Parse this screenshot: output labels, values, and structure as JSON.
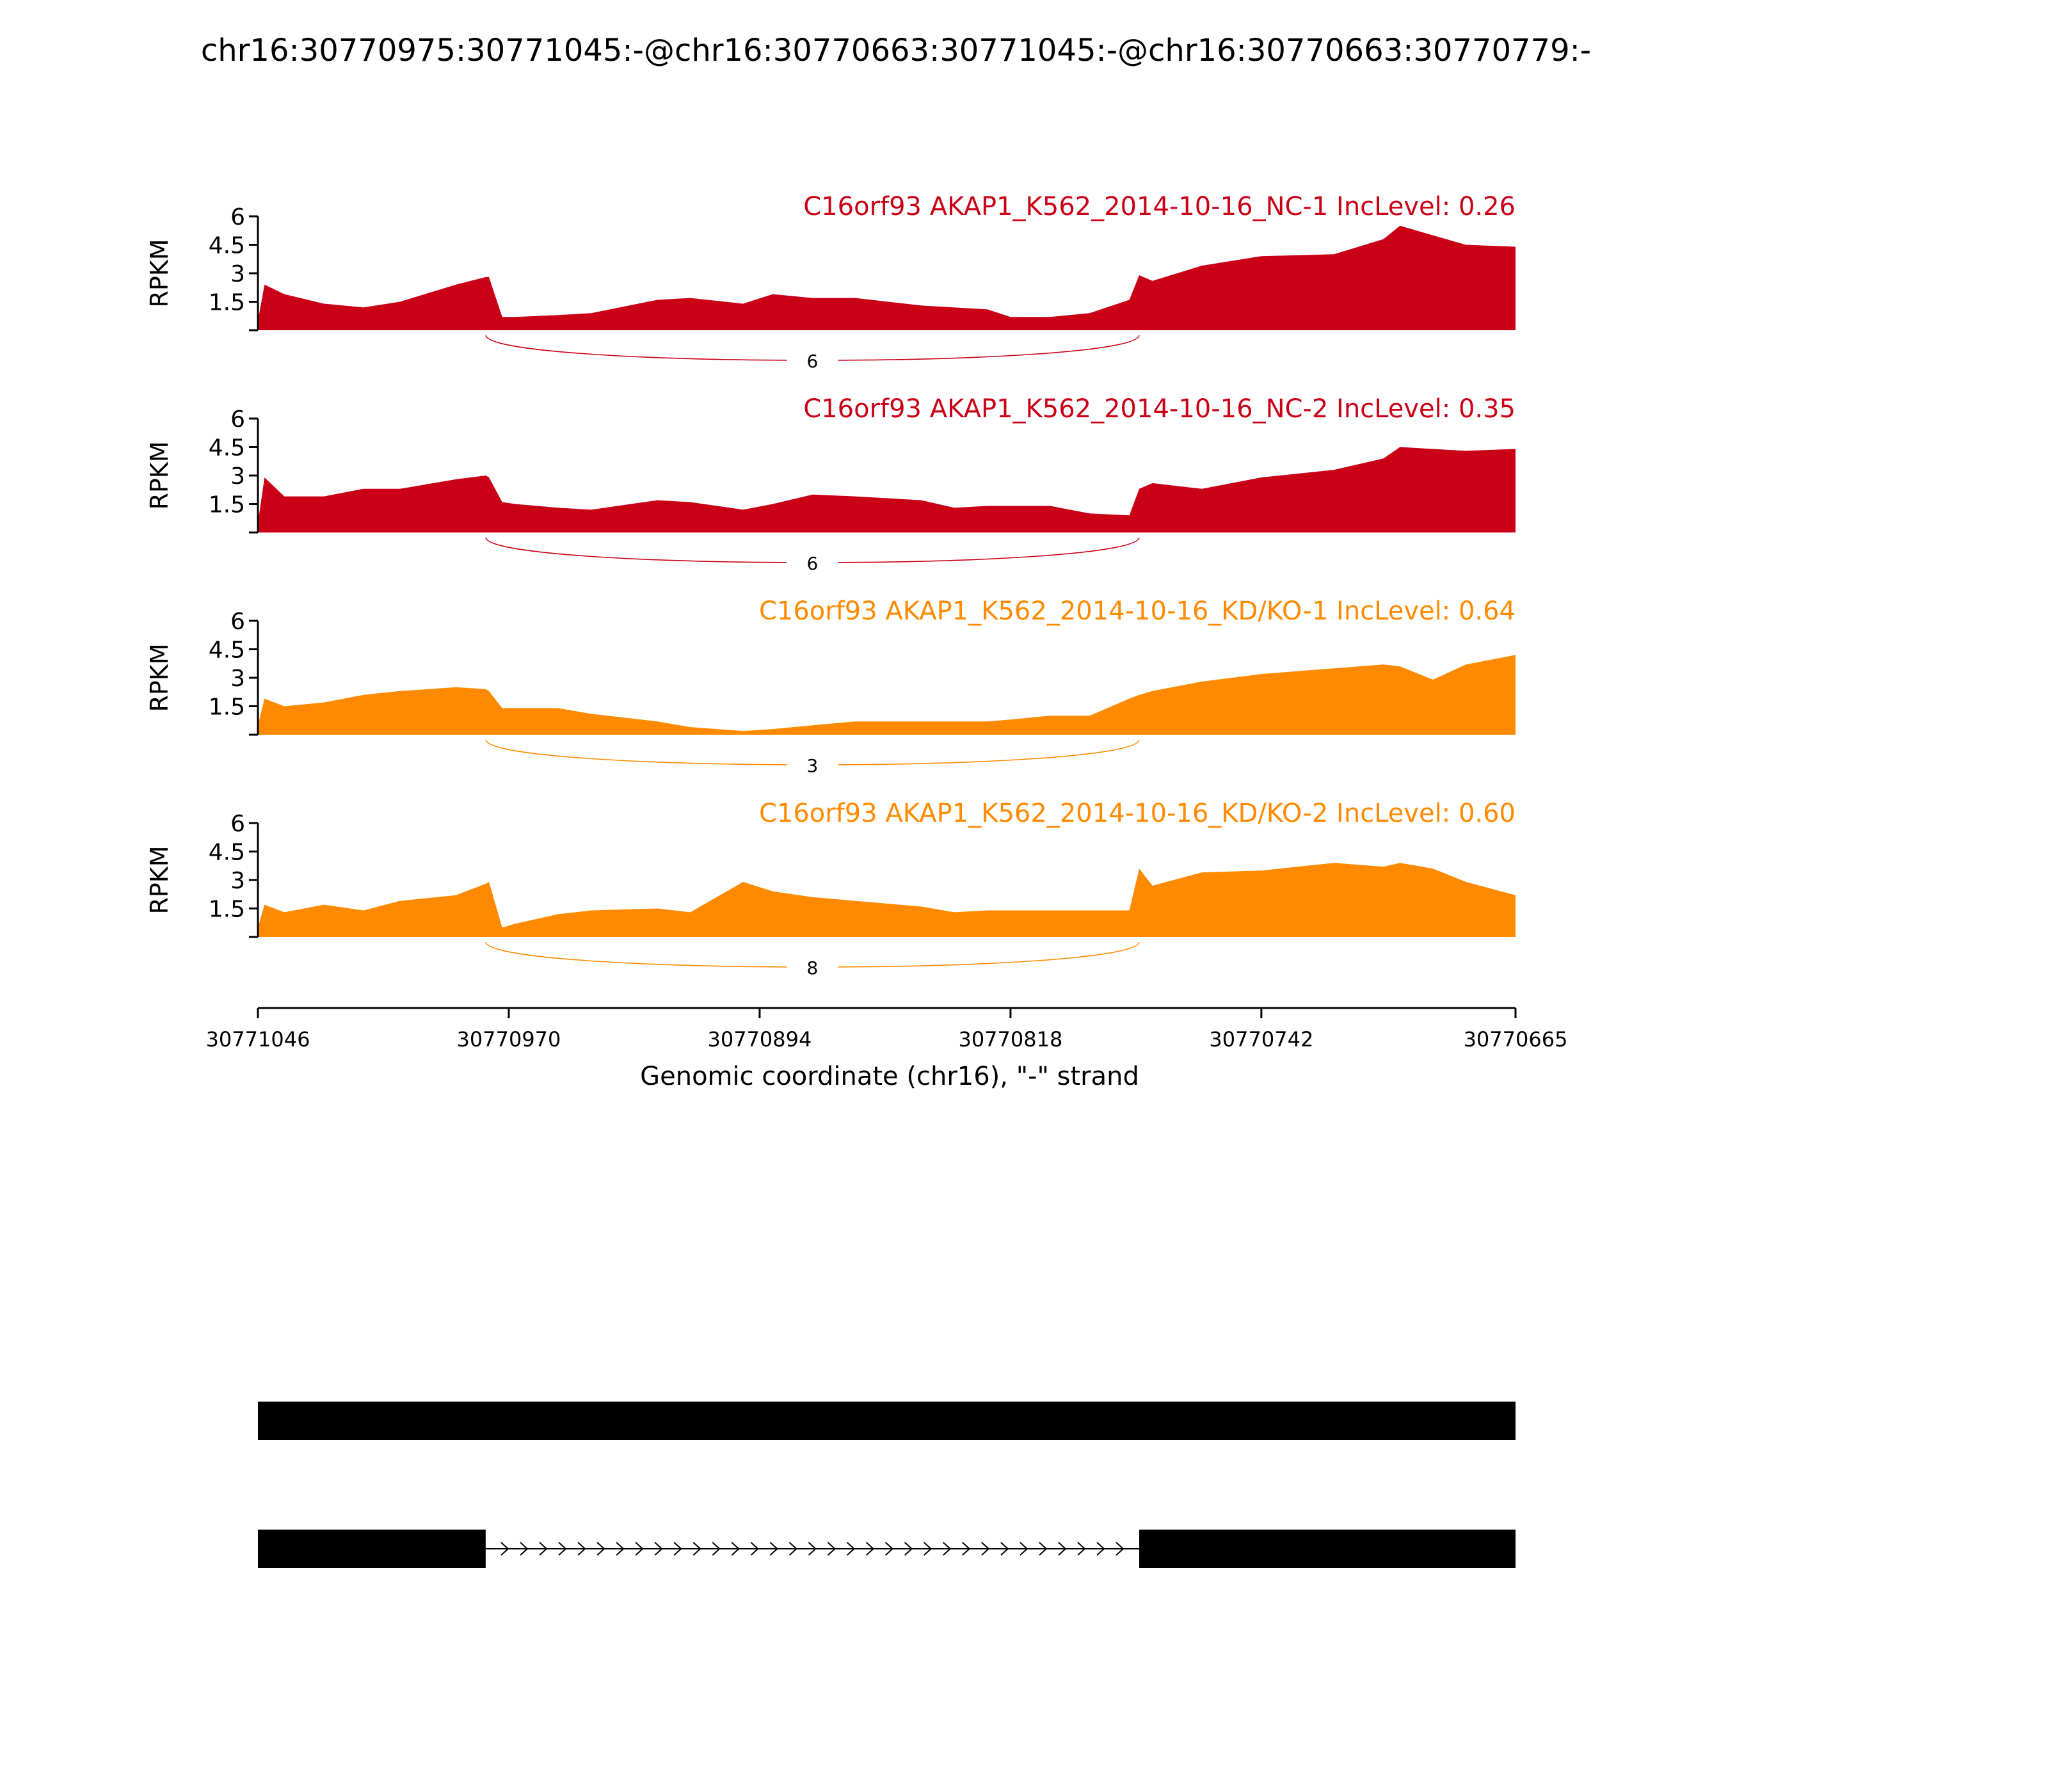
{
  "chart_data": {
    "type": "area",
    "title": "chr16:30770975:30771045:-@chr16:30770663:30771045:-@chr16:30770663:30770779:-",
    "xlabel": "Genomic coordinate (chr16), \"-\" strand",
    "ylabel": "RPKM",
    "xlim": [
      30771046,
      30770665
    ],
    "x_ticks": [
      "30771046",
      "30770970",
      "30770894",
      "30770818",
      "30770742",
      "30770665"
    ],
    "ylim": [
      0,
      6
    ],
    "y_ticks": [
      "1.5",
      "3",
      "4.5",
      "6"
    ],
    "x": [
      30771046,
      30771044,
      30771038,
      30771026,
      30771014,
      30771003,
      30770986,
      30770977,
      30770976,
      30770972,
      30770968,
      30770955,
      30770945,
      30770925,
      30770915,
      30770899,
      30770890,
      30770878,
      30770865,
      30770845,
      30770835,
      30770825,
      30770818,
      30770806,
      30770794,
      30770782,
      30770779,
      30770775,
      30770760,
      30770742,
      30770720,
      30770705,
      30770700,
      30770690,
      30770680,
      30770665
    ],
    "series": [
      {
        "name": "C16orf93 AKAP1_K562_2014-10-16_NC-1 IncLevel: 0.26",
        "color": "#c90016",
        "values": [
          0.5,
          2.4,
          1.9,
          1.4,
          1.2,
          1.5,
          2.4,
          2.8,
          2.8,
          0.7,
          0.7,
          0.8,
          0.9,
          1.6,
          1.7,
          1.4,
          1.9,
          1.7,
          1.7,
          1.3,
          1.2,
          1.1,
          0.7,
          0.7,
          0.9,
          1.6,
          2.9,
          2.6,
          3.4,
          3.9,
          4.0,
          4.8,
          5.5,
          5.0,
          4.5,
          4.4
        ],
        "junction": {
          "count": "6",
          "from": 30770977,
          "to": 30770779
        }
      },
      {
        "name": "C16orf93 AKAP1_K562_2014-10-16_NC-2 IncLevel: 0.35",
        "color": "#c90016",
        "values": [
          0.5,
          2.9,
          1.9,
          1.9,
          2.3,
          2.3,
          2.8,
          3.0,
          2.9,
          1.6,
          1.5,
          1.3,
          1.2,
          1.7,
          1.6,
          1.2,
          1.5,
          2.0,
          1.9,
          1.7,
          1.3,
          1.4,
          1.4,
          1.4,
          1.0,
          0.9,
          2.3,
          2.6,
          2.3,
          2.9,
          3.3,
          3.9,
          4.5,
          4.4,
          4.3,
          4.4
        ],
        "junction": {
          "count": "6",
          "from": 30770977,
          "to": 30770779
        }
      },
      {
        "name": "C16orf93 AKAP1_K562_2014-10-16_KD/KO-1 IncLevel: 0.64",
        "color": "#ff8a00",
        "values": [
          0.5,
          1.9,
          1.5,
          1.7,
          2.1,
          2.3,
          2.5,
          2.4,
          2.3,
          1.4,
          1.4,
          1.4,
          1.1,
          0.7,
          0.4,
          0.2,
          0.3,
          0.5,
          0.7,
          0.7,
          0.7,
          0.7,
          0.8,
          1.0,
          1.0,
          1.9,
          2.1,
          2.3,
          2.8,
          3.2,
          3.5,
          3.7,
          3.6,
          2.9,
          3.7,
          4.2
        ],
        "junction": {
          "count": "3",
          "from": 30770977,
          "to": 30770779
        }
      },
      {
        "name": "C16orf93 AKAP1_K562_2014-10-16_KD/KO-2 IncLevel: 0.60",
        "color": "#ff8a00",
        "values": [
          0.5,
          1.7,
          1.3,
          1.7,
          1.4,
          1.9,
          2.2,
          2.8,
          2.9,
          0.5,
          0.7,
          1.2,
          1.4,
          1.5,
          1.3,
          2.9,
          2.4,
          2.1,
          1.9,
          1.6,
          1.3,
          1.4,
          1.4,
          1.4,
          1.4,
          1.4,
          3.6,
          2.7,
          3.4,
          3.5,
          3.9,
          3.7,
          3.9,
          3.6,
          2.9,
          2.2
        ],
        "junction": {
          "count": "8",
          "from": 30770977,
          "to": 30770779
        }
      }
    ],
    "isoforms": [
      {
        "exons": [
          [
            30771046,
            30770665
          ]
        ]
      },
      {
        "exons": [
          [
            30771046,
            30770977
          ],
          [
            30770779,
            30770665
          ]
        ]
      }
    ]
  }
}
